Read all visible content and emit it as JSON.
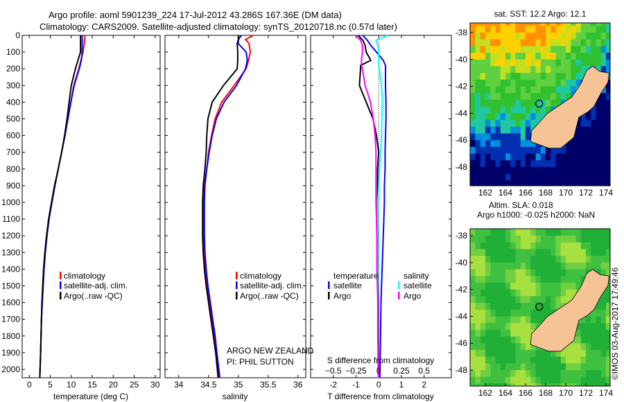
{
  "title": {
    "line1": "Argo profile: aoml 5901239_224 17-Jul-2012 43.286S 167.36E (DM data)",
    "line2": "Climatology: CARS2009. Satellite-adjusted climatology: synTS_20120718.nc (0.57d later)"
  },
  "colors": {
    "climatology": "#ff0000",
    "satellite": "#0000ff",
    "argo": "#000000",
    "sal_satellite": "#00ffff",
    "sal_argo": "#ff00ff",
    "land": "#f5c396"
  },
  "chart_data": [
    {
      "type": "line",
      "name": "temperature",
      "xlabel": "temperature (deg C)",
      "xlim": [
        -1.7,
        31.2
      ],
      "ylim": [
        2050,
        0
      ],
      "xticks": [
        0,
        5,
        10,
        15,
        20,
        25,
        30
      ],
      "yticks": [
        0,
        100,
        200,
        300,
        400,
        500,
        600,
        700,
        800,
        900,
        1000,
        1100,
        1200,
        1300,
        1400,
        1500,
        1600,
        1700,
        1800,
        1900,
        2000
      ],
      "depth": [
        0,
        50,
        100,
        150,
        200,
        300,
        400,
        500,
        600,
        700,
        800,
        900,
        1000,
        1100,
        1200,
        1300,
        1400,
        1500,
        1600,
        1700,
        1800,
        1900,
        2050
      ],
      "series": [
        {
          "name": "climatology",
          "values": [
            13.3,
            13.1,
            12.8,
            12.3,
            11.8,
            10.6,
            9.9,
            9.2,
            8.5,
            7.7,
            6.9,
            6.1,
            5.4,
            4.7,
            4.2,
            3.8,
            3.5,
            3.3,
            3.1,
            2.9,
            2.8,
            2.7,
            2.5
          ]
        },
        {
          "name": "satellite-adj. clim.",
          "values": [
            12.6,
            12.6,
            12.6,
            12.4,
            11.9,
            10.7,
            9.9,
            9.2,
            8.5,
            7.7,
            6.9,
            6.1,
            5.4,
            4.7,
            4.2,
            3.8,
            3.5,
            3.3,
            3.1,
            2.9,
            2.8,
            2.7,
            2.5
          ]
        },
        {
          "name": "Argo(..raw -QC)",
          "values": [
            12.2,
            12.2,
            12.2,
            11.6,
            11.0,
            10.0,
            9.5,
            9.0,
            8.4,
            7.7,
            6.9,
            6.0,
            5.3,
            4.6,
            4.1,
            3.7,
            3.4,
            3.2,
            3.0,
            2.9,
            2.8,
            2.7,
            2.5
          ]
        }
      ],
      "legend": [
        "climatology",
        "satellite-adj. clim.",
        "Argo(..raw -QC)"
      ]
    },
    {
      "type": "line",
      "name": "salinity",
      "xlabel": "salinity",
      "xlim": [
        33.77,
        36.13
      ],
      "ylim": [
        2050,
        0
      ],
      "xticks": [
        34,
        34.5,
        35,
        35.5,
        36
      ],
      "xticklabels": [
        "34",
        "34.5",
        "35",
        "35.5",
        "36"
      ],
      "depth": [
        0,
        25,
        50,
        100,
        150,
        200,
        300,
        400,
        500,
        600,
        700,
        800,
        900,
        1000,
        1100,
        1200,
        1300,
        1400,
        1500,
        1600,
        1700,
        1800,
        1900,
        2050
      ],
      "series": [
        {
          "name": "climatology",
          "values": [
            35.25,
            35.12,
            35.18,
            35.2,
            35.17,
            35.13,
            34.93,
            34.72,
            34.61,
            34.55,
            34.5,
            34.47,
            34.43,
            34.42,
            34.42,
            34.42,
            34.43,
            34.45,
            34.48,
            34.52,
            34.56,
            34.6,
            34.63,
            34.68
          ]
        },
        {
          "name": "satellite-adj. clim.",
          "values": [
            35.05,
            35.0,
            35.0,
            35.13,
            35.15,
            35.12,
            34.97,
            34.76,
            34.63,
            34.56,
            34.51,
            34.47,
            34.44,
            34.43,
            34.43,
            34.43,
            34.44,
            34.46,
            34.49,
            34.53,
            34.57,
            34.61,
            34.64,
            34.69
          ]
        },
        {
          "name": "Argo(..raw -QC)",
          "values": [
            35.0,
            35.0,
            34.98,
            34.99,
            34.99,
            34.98,
            34.75,
            34.56,
            34.49,
            34.47,
            34.46,
            34.44,
            34.41,
            34.4,
            34.4,
            34.4,
            34.41,
            34.43,
            34.46,
            34.5,
            34.54,
            34.58,
            34.62,
            34.66
          ]
        }
      ],
      "legend": [
        "climatology",
        "satellite-adj. clim.",
        "Argo(..raw -QC)"
      ],
      "annotation": [
        "ARGO NEW ZEALAND",
        "PI: PHIL SUTTON"
      ]
    },
    {
      "type": "line",
      "name": "difference",
      "xlabel": "T difference from climatology",
      "xlabel2": "S difference from climatology",
      "xlim": [
        -3.0,
        3.2
      ],
      "s_per_t": 0.25,
      "ylim": [
        2050,
        0
      ],
      "xticks": [
        -2,
        -1,
        0,
        1,
        2
      ],
      "xticks_s": [
        -0.5,
        -0.25,
        0,
        0.25,
        0.5
      ],
      "depth": [
        0,
        30,
        60,
        100,
        150,
        180,
        200,
        300,
        400,
        500,
        600,
        700,
        800,
        900,
        1000,
        1200,
        1400,
        1600,
        1800,
        2050
      ],
      "series": [
        {
          "name": "temperature satellite",
          "var": "T",
          "values": [
            -0.7,
            -0.5,
            -0.35,
            -0.1,
            0.2,
            0.3,
            0.3,
            0.3,
            0.32,
            0.32,
            0.3,
            0.28,
            0.28,
            0.25,
            0.25,
            0.2,
            0.15,
            0.1,
            0.08,
            0.05
          ]
        },
        {
          "name": "temperature Argo",
          "var": "T",
          "values": [
            -0.9,
            -0.7,
            -0.6,
            -0.55,
            -0.35,
            -0.8,
            -0.8,
            -0.85,
            -0.55,
            -0.25,
            -0.1,
            0.0,
            -0.05,
            -0.05,
            -0.05,
            -0.03,
            -0.03,
            -0.02,
            -0.02,
            0.0
          ]
        },
        {
          "name": "salinity satellite",
          "var": "S",
          "values": [
            0.1,
            -0.03,
            -0.01,
            0.0,
            0.0,
            0.0,
            0.005,
            0.03,
            0.04,
            0.035,
            0.03,
            0.02,
            0.01,
            0.0,
            -0.01,
            -0.01,
            -0.01,
            -0.01,
            -0.01,
            -0.01
          ]
        },
        {
          "name": "salinity Argo",
          "var": "S",
          "values": [
            -0.25,
            -0.2,
            -0.18,
            -0.18,
            -0.19,
            -0.19,
            -0.18,
            -0.15,
            -0.09,
            -0.06,
            -0.04,
            -0.03,
            -0.03,
            -0.03,
            -0.03,
            -0.02,
            -0.02,
            -0.01,
            -0.01,
            0.0
          ]
        }
      ],
      "legend": {
        "t_heading": "temperature",
        "s_heading": "salinity",
        "satellite": "satellite",
        "argo": "Argo"
      }
    }
  ],
  "maps": {
    "sst": {
      "title": "sat. SST: 12.2 Argo: 12.1"
    },
    "sla": {
      "title1": "Altim. SLA: 0.018",
      "title2": "Argo h1000: -0.025 h2000: NaN"
    },
    "lon_ticks": [
      162,
      164,
      166,
      168,
      170,
      172,
      174
    ],
    "lat_ticks": [
      -38,
      -40,
      -42,
      -44,
      -46,
      -48
    ],
    "profile_location": {
      "lon": 167.36,
      "lat": -43.286
    }
  },
  "credit": "©IMOS 03-Aug-2017 17:49:46"
}
